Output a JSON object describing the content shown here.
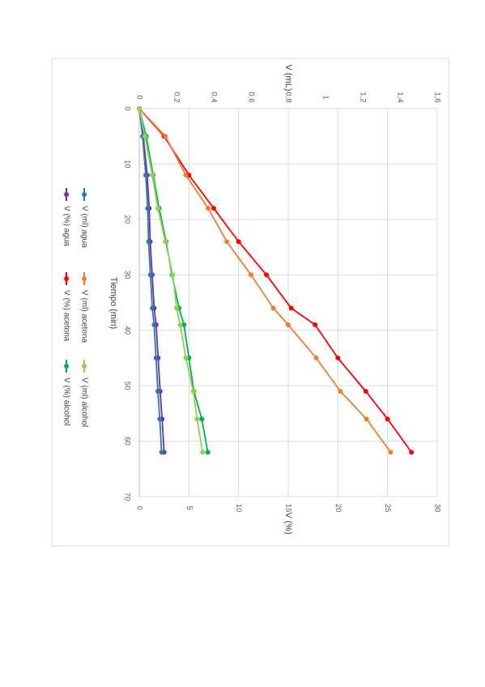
{
  "chart_data": {
    "type": "line",
    "orientation": "rotated 90° clockwise (page is a scanned landscape chart)",
    "xlabel": "Tiempo (min)",
    "ylabel": "V (%)",
    "y2label": "V (mL)",
    "xlim": [
      0,
      70
    ],
    "xticks": [
      "0",
      "10",
      "20",
      "30",
      "40",
      "50",
      "60",
      "70"
    ],
    "ylim": [
      0,
      30
    ],
    "yticks": [
      "0",
      "5",
      "10",
      "15",
      "20",
      "25",
      "30"
    ],
    "y2lim": [
      0,
      1.6
    ],
    "y2ticks": [
      "0",
      "0,2",
      "0,4",
      "0,6",
      "0,8",
      "1",
      "1,2",
      "1,4",
      "1,6"
    ],
    "grid": "major",
    "legend_position": "right",
    "series": [
      {
        "name": "V (%) agua",
        "axis": "primary",
        "color": "#7030a0",
        "x": [
          0,
          5,
          12,
          18,
          24,
          30,
          36,
          39,
          45,
          51,
          56,
          62
        ],
        "y": [
          0,
          0.4,
          0.8,
          1.0,
          1.1,
          1.3,
          1.5,
          1.7,
          1.9,
          2.1,
          2.3,
          2.5
        ]
      },
      {
        "name": "V (ml) agua",
        "axis": "secondary",
        "color": "#2e75b6",
        "x": [
          0,
          5,
          12,
          18,
          24,
          30,
          36,
          39,
          45,
          51,
          56,
          62
        ],
        "y": [
          0,
          0.018,
          0.035,
          0.045,
          0.05,
          0.06,
          0.07,
          0.08,
          0.09,
          0.1,
          0.11,
          0.12
        ]
      },
      {
        "name": "V (%) acetona",
        "axis": "primary",
        "color": "#ff0000",
        "x": [
          0,
          5,
          12,
          18,
          24,
          30,
          36,
          39,
          45,
          51,
          56,
          62
        ],
        "y": [
          0,
          2.5,
          5.0,
          7.5,
          10.0,
          12.8,
          15.3,
          17.7,
          20.0,
          22.8,
          25.0,
          27.4
        ]
      },
      {
        "name": "V (ml) acetona",
        "axis": "secondary",
        "color": "#ed7d31",
        "x": [
          0,
          5,
          12,
          18,
          24,
          30,
          36,
          39,
          45,
          51,
          56,
          62
        ],
        "y": [
          0,
          0.14,
          0.25,
          0.37,
          0.47,
          0.6,
          0.72,
          0.8,
          0.95,
          1.08,
          1.22,
          1.35
        ]
      },
      {
        "name": "V (%) alcohol",
        "axis": "primary",
        "color": "#00b050",
        "x": [
          0,
          5,
          12,
          18,
          24,
          30,
          36,
          39,
          45,
          51,
          56,
          62
        ],
        "y": [
          0,
          0.7,
          1.4,
          2.0,
          2.7,
          3.3,
          4.0,
          4.5,
          5.0,
          5.5,
          6.3,
          6.9
        ]
      },
      {
        "name": "V (ml) alcohol",
        "axis": "secondary",
        "color": "#92d050",
        "x": [
          0,
          5,
          12,
          18,
          24,
          30,
          36,
          39,
          45,
          51,
          56,
          62
        ],
        "y": [
          0,
          0.03,
          0.07,
          0.1,
          0.14,
          0.18,
          0.2,
          0.22,
          0.25,
          0.29,
          0.31,
          0.34
        ]
      }
    ]
  }
}
